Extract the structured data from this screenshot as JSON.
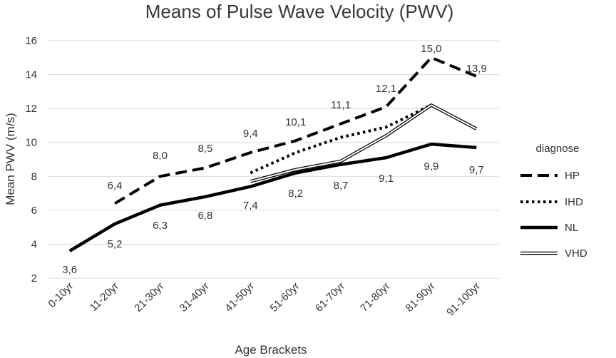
{
  "chart_data": {
    "type": "line",
    "title": "Means of Pulse Wave Velocity (PWV)",
    "xlabel": "Age Brackets",
    "ylabel": "Mean PWV (m/s)",
    "ylim": [
      2,
      16
    ],
    "yticks": [
      "2",
      "4",
      "6",
      "8",
      "10",
      "12",
      "14",
      "16"
    ],
    "grid": true,
    "categories": [
      "0-10yr",
      "11-20yr",
      "21-30yr",
      "31-40yr",
      "41-50yr",
      "51-60yr",
      "61-70yr",
      "71-80yr",
      "81-90yr",
      "91-100yr"
    ],
    "legend_title": "diagnose",
    "legend_position": "right",
    "series": [
      {
        "name": "HP",
        "style": "dashed",
        "values": [
          null,
          6.4,
          8.0,
          8.5,
          9.4,
          10.1,
          11.1,
          12.1,
          15.0,
          13.9
        ],
        "labels": [
          null,
          "6,4",
          "8,0",
          "8,5",
          "9,4",
          "10,1",
          "11,1",
          "12,1",
          "15,0",
          "13,9"
        ]
      },
      {
        "name": "IHD",
        "style": "dotted",
        "values": [
          null,
          null,
          null,
          null,
          8.2,
          9.4,
          10.3,
          10.9,
          12.2,
          null
        ],
        "labels": [
          null,
          null,
          null,
          null,
          null,
          null,
          null,
          null,
          null,
          null
        ]
      },
      {
        "name": "NL",
        "style": "solid",
        "values": [
          3.6,
          5.2,
          6.3,
          6.8,
          7.4,
          8.2,
          8.7,
          9.1,
          9.9,
          9.7
        ],
        "labels": [
          "3,6",
          "5,2",
          "6,3",
          "6,8",
          "7,4",
          "8,2",
          "8,7",
          "9,1",
          "9,9",
          "9,7"
        ]
      },
      {
        "name": "VHD",
        "style": "double",
        "values": [
          null,
          null,
          null,
          null,
          7.7,
          8.4,
          8.9,
          10.4,
          12.2,
          10.8
        ],
        "labels": [
          null,
          null,
          null,
          null,
          null,
          null,
          null,
          null,
          null,
          null
        ]
      }
    ]
  }
}
